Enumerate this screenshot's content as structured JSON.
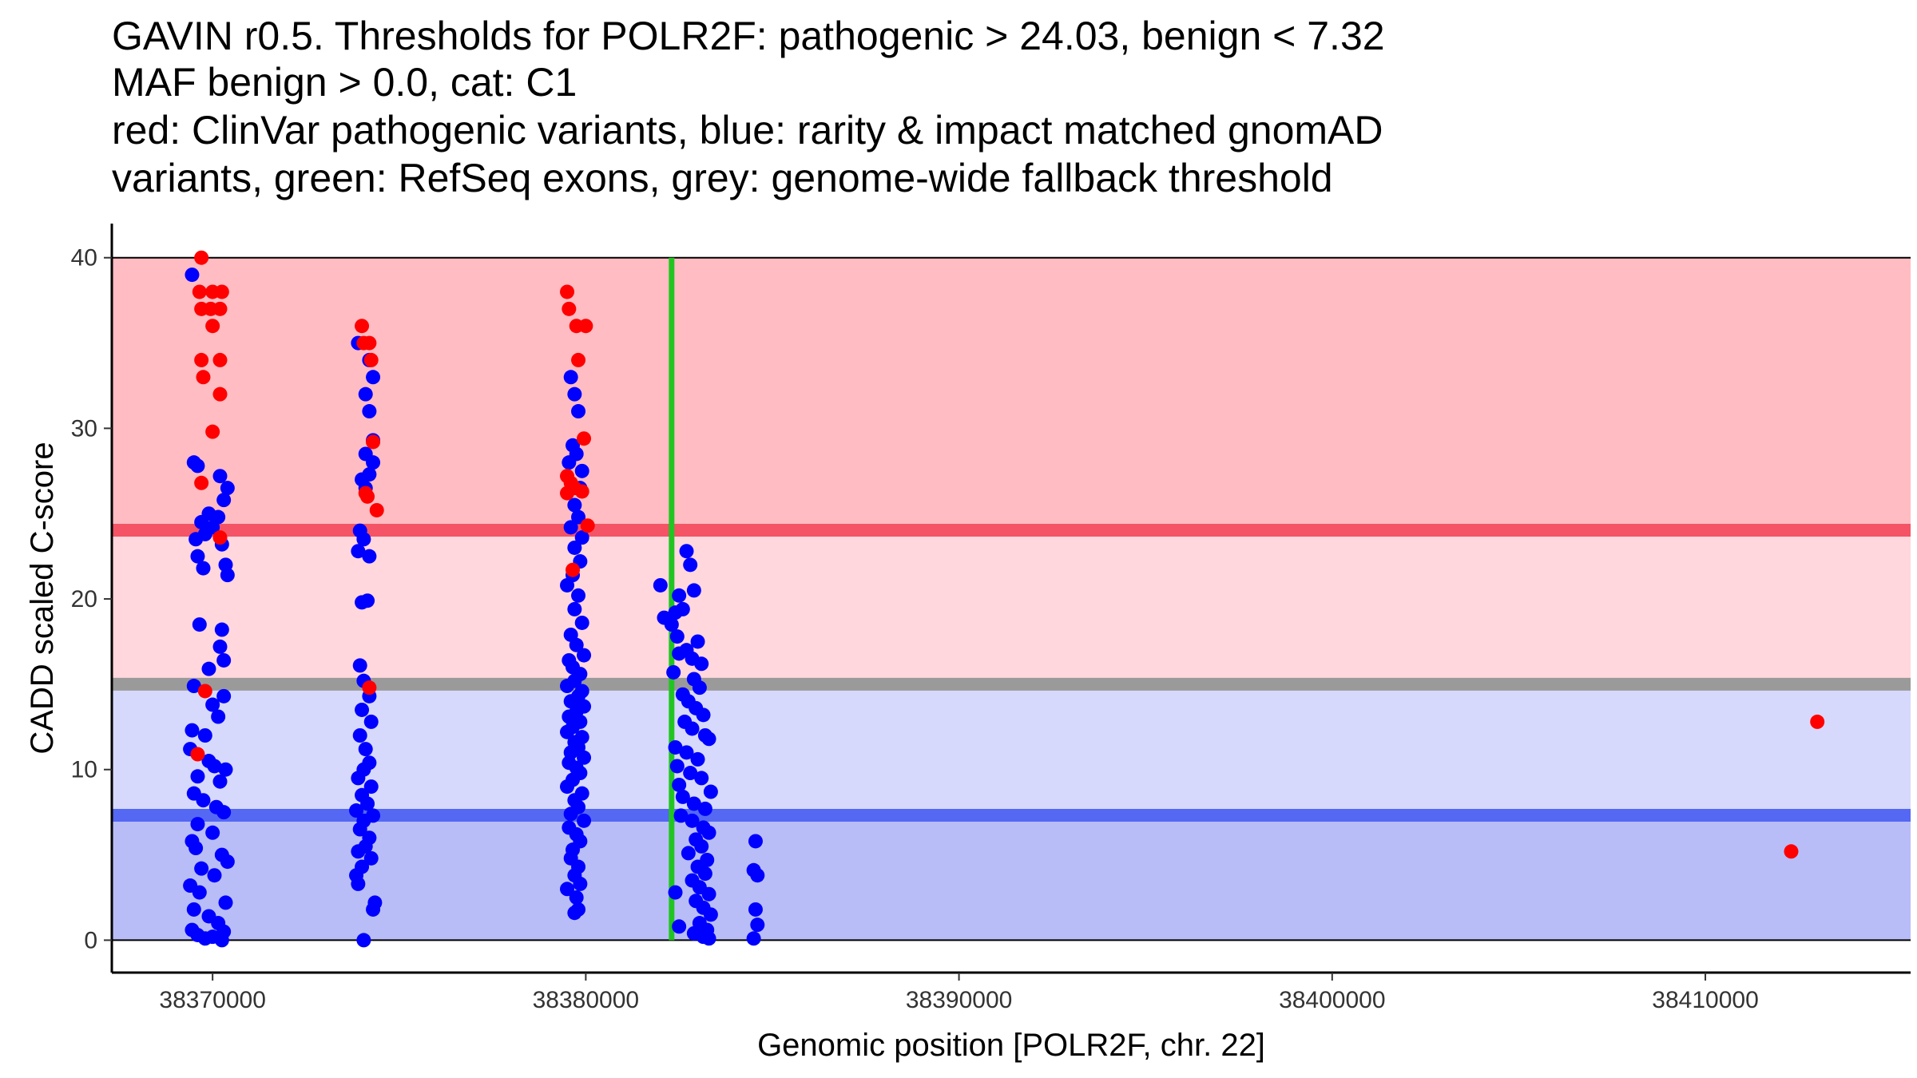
{
  "chart_data": {
    "type": "scatter",
    "title_lines": [
      "GAVIN r0.5. Thresholds for POLR2F: pathogenic > 24.03, benign < 7.32",
      "MAF benign > 0.0, cat: C1",
      "red: ClinVar pathogenic variants, blue: rarity & impact matched gnomAD",
      "variants, green: RefSeq exons, grey: genome-wide fallback threshold"
    ],
    "xlabel": "Genomic position [POLR2F, chr. 22]",
    "ylabel": "CADD scaled C-score",
    "xlim": [
      38367300,
      38415500
    ],
    "ylim": [
      -1.9,
      42
    ],
    "x_ticks": [
      38370000,
      38380000,
      38390000,
      38400000,
      38410000
    ],
    "x_tick_labels": [
      "38370000",
      "38380000",
      "38390000",
      "38400000",
      "38410000"
    ],
    "y_ticks": [
      0,
      10,
      20,
      30,
      40
    ],
    "y_tick_labels": [
      "0",
      "10",
      "20",
      "30",
      "40"
    ],
    "thresholds": {
      "pathogenic": 24.03,
      "benign": 7.32,
      "fallback": 15.0,
      "max": 40
    },
    "colors": {
      "pathogenic_zone": "#ffbcc2",
      "mid_patho_zone": "#ffd7dc",
      "mid_benign_zone": "#d6d9fb",
      "benign_zone": "#b8bdf7",
      "pathogenic_line": "#f45465",
      "benign_line": "#5468f4",
      "fallback_line": "#9a9a9a",
      "exon": "#22c422",
      "clinvar": "#ff0000",
      "gnomad": "#0000ff"
    },
    "exons": [
      38382300
    ],
    "series": [
      {
        "name": "gnomAD",
        "points": [
          [
            38369450,
            39.0
          ],
          [
            38369500,
            28.0
          ],
          [
            38369600,
            27.8
          ],
          [
            38369700,
            24.5
          ],
          [
            38369550,
            23.5
          ],
          [
            38369600,
            22.5
          ],
          [
            38369800,
            23.8
          ],
          [
            38369900,
            25.0
          ],
          [
            38370150,
            24.8
          ],
          [
            38370300,
            25.8
          ],
          [
            38370400,
            26.5
          ],
          [
            38370200,
            27.2
          ],
          [
            38370250,
            23.2
          ],
          [
            38370350,
            22.0
          ],
          [
            38370400,
            21.4
          ],
          [
            38369750,
            21.8
          ],
          [
            38370000,
            24.2
          ],
          [
            38369650,
            18.5
          ],
          [
            38370250,
            18.2
          ],
          [
            38370200,
            17.2
          ],
          [
            38370300,
            16.4
          ],
          [
            38369900,
            15.9
          ],
          [
            38369500,
            14.9
          ],
          [
            38370300,
            14.3
          ],
          [
            38370000,
            13.8
          ],
          [
            38370150,
            13.1
          ],
          [
            38369450,
            12.3
          ],
          [
            38369800,
            12.0
          ],
          [
            38369400,
            11.2
          ],
          [
            38369900,
            10.5
          ],
          [
            38370050,
            10.2
          ],
          [
            38370350,
            10.0
          ],
          [
            38369600,
            9.6
          ],
          [
            38370200,
            9.3
          ],
          [
            38369500,
            8.6
          ],
          [
            38369750,
            8.2
          ],
          [
            38370100,
            7.8
          ],
          [
            38370300,
            7.5
          ],
          [
            38369600,
            6.8
          ],
          [
            38370000,
            6.3
          ],
          [
            38369450,
            5.8
          ],
          [
            38369550,
            5.4
          ],
          [
            38370250,
            5.0
          ],
          [
            38370400,
            4.6
          ],
          [
            38369700,
            4.2
          ],
          [
            38370050,
            3.8
          ],
          [
            38369400,
            3.2
          ],
          [
            38369650,
            2.8
          ],
          [
            38370350,
            2.2
          ],
          [
            38369500,
            1.8
          ],
          [
            38369900,
            1.4
          ],
          [
            38370150,
            1.0
          ],
          [
            38369450,
            0.6
          ],
          [
            38370300,
            0.5
          ],
          [
            38369600,
            0.3
          ],
          [
            38369800,
            0.1
          ],
          [
            38370000,
            0.2
          ],
          [
            38370250,
            0.0
          ],
          [
            38373900,
            35.0
          ],
          [
            38374200,
            34.0
          ],
          [
            38374300,
            33.0
          ],
          [
            38374100,
            32.0
          ],
          [
            38374200,
            31.0
          ],
          [
            38374300,
            29.3
          ],
          [
            38374100,
            28.5
          ],
          [
            38374300,
            28.0
          ],
          [
            38374200,
            27.3
          ],
          [
            38374000,
            27.0
          ],
          [
            38374100,
            26.5
          ],
          [
            38373950,
            24.0
          ],
          [
            38374050,
            23.5
          ],
          [
            38373900,
            22.8
          ],
          [
            38374200,
            22.5
          ],
          [
            38374000,
            19.8
          ],
          [
            38374150,
            19.9
          ],
          [
            38373950,
            16.1
          ],
          [
            38374050,
            15.2
          ],
          [
            38374200,
            14.3
          ],
          [
            38374000,
            13.5
          ],
          [
            38374250,
            12.8
          ],
          [
            38373950,
            12.0
          ],
          [
            38374100,
            11.2
          ],
          [
            38374200,
            10.4
          ],
          [
            38374050,
            10.0
          ],
          [
            38373900,
            9.5
          ],
          [
            38374250,
            9.0
          ],
          [
            38374000,
            8.5
          ],
          [
            38374150,
            8.0
          ],
          [
            38373850,
            7.6
          ],
          [
            38374300,
            7.3
          ],
          [
            38374050,
            7.0
          ],
          [
            38373950,
            6.5
          ],
          [
            38374200,
            6.0
          ],
          [
            38374100,
            5.5
          ],
          [
            38373900,
            5.2
          ],
          [
            38374250,
            4.8
          ],
          [
            38374000,
            4.3
          ],
          [
            38373850,
            3.8
          ],
          [
            38373900,
            3.3
          ],
          [
            38374350,
            2.2
          ],
          [
            38374300,
            1.8
          ],
          [
            38374050,
            0.0
          ],
          [
            38379600,
            33.0
          ],
          [
            38379700,
            32.0
          ],
          [
            38379800,
            31.0
          ],
          [
            38379650,
            29.0
          ],
          [
            38379750,
            28.5
          ],
          [
            38379550,
            28.0
          ],
          [
            38379900,
            27.5
          ],
          [
            38379850,
            26.5
          ],
          [
            38379700,
            25.5
          ],
          [
            38379800,
            24.8
          ],
          [
            38379600,
            24.2
          ],
          [
            38379900,
            23.6
          ],
          [
            38379700,
            23.0
          ],
          [
            38379850,
            22.2
          ],
          [
            38379650,
            21.4
          ],
          [
            38379500,
            20.8
          ],
          [
            38379800,
            20.2
          ],
          [
            38379700,
            19.4
          ],
          [
            38379900,
            18.6
          ],
          [
            38379600,
            17.9
          ],
          [
            38379750,
            17.3
          ],
          [
            38379950,
            16.7
          ],
          [
            38379550,
            16.4
          ],
          [
            38379650,
            16.0
          ],
          [
            38379850,
            15.6
          ],
          [
            38379700,
            15.2
          ],
          [
            38379500,
            14.9
          ],
          [
            38379900,
            14.6
          ],
          [
            38379800,
            14.3
          ],
          [
            38379600,
            14.0
          ],
          [
            38379950,
            13.7
          ],
          [
            38379750,
            13.4
          ],
          [
            38379550,
            13.1
          ],
          [
            38379850,
            12.8
          ],
          [
            38379650,
            12.5
          ],
          [
            38379500,
            12.2
          ],
          [
            38379900,
            11.9
          ],
          [
            38379700,
            11.6
          ],
          [
            38379800,
            11.3
          ],
          [
            38379600,
            11.0
          ],
          [
            38379950,
            10.7
          ],
          [
            38379550,
            10.4
          ],
          [
            38379750,
            10.1
          ],
          [
            38379850,
            9.8
          ],
          [
            38379650,
            9.4
          ],
          [
            38379500,
            9.0
          ],
          [
            38379900,
            8.6
          ],
          [
            38379700,
            8.2
          ],
          [
            38379800,
            7.8
          ],
          [
            38379600,
            7.4
          ],
          [
            38379950,
            7.0
          ],
          [
            38379550,
            6.6
          ],
          [
            38379750,
            6.2
          ],
          [
            38379850,
            5.8
          ],
          [
            38379650,
            5.3
          ],
          [
            38379600,
            4.8
          ],
          [
            38379800,
            4.3
          ],
          [
            38379700,
            3.8
          ],
          [
            38379500,
            3.0
          ],
          [
            38379850,
            3.3
          ],
          [
            38379750,
            2.5
          ],
          [
            38379800,
            1.8
          ],
          [
            38379700,
            1.6
          ],
          [
            38382000,
            20.8
          ],
          [
            38382400,
            19.2
          ],
          [
            38382100,
            18.9
          ],
          [
            38382700,
            22.8
          ],
          [
            38382800,
            22.0
          ],
          [
            38382900,
            20.5
          ],
          [
            38382500,
            20.2
          ],
          [
            38382600,
            19.4
          ],
          [
            38382300,
            18.5
          ],
          [
            38382450,
            17.8
          ],
          [
            38383000,
            17.5
          ],
          [
            38382700,
            17.0
          ],
          [
            38382500,
            16.8
          ],
          [
            38382850,
            16.5
          ],
          [
            38383100,
            16.2
          ],
          [
            38382350,
            15.7
          ],
          [
            38382900,
            15.3
          ],
          [
            38383050,
            14.8
          ],
          [
            38382600,
            14.4
          ],
          [
            38382750,
            14.0
          ],
          [
            38382950,
            13.6
          ],
          [
            38383150,
            13.2
          ],
          [
            38382650,
            12.8
          ],
          [
            38382850,
            12.4
          ],
          [
            38383200,
            12.0
          ],
          [
            38383300,
            11.8
          ],
          [
            38382400,
            11.3
          ],
          [
            38382700,
            11.0
          ],
          [
            38383000,
            10.6
          ],
          [
            38382450,
            10.2
          ],
          [
            38382800,
            9.8
          ],
          [
            38383100,
            9.5
          ],
          [
            38382500,
            9.1
          ],
          [
            38383350,
            8.7
          ],
          [
            38382600,
            8.4
          ],
          [
            38382900,
            8.0
          ],
          [
            38383200,
            7.7
          ],
          [
            38382550,
            7.3
          ],
          [
            38382850,
            7.0
          ],
          [
            38383150,
            6.6
          ],
          [
            38383300,
            6.3
          ],
          [
            38382950,
            5.9
          ],
          [
            38383100,
            5.5
          ],
          [
            38382750,
            5.1
          ],
          [
            38383250,
            4.7
          ],
          [
            38383000,
            4.3
          ],
          [
            38383200,
            3.9
          ],
          [
            38382850,
            3.5
          ],
          [
            38383050,
            3.1
          ],
          [
            38383300,
            2.7
          ],
          [
            38382400,
            2.8
          ],
          [
            38382950,
            2.3
          ],
          [
            38383150,
            1.9
          ],
          [
            38383350,
            1.5
          ],
          [
            38383050,
            1.0
          ],
          [
            38382500,
            0.8
          ],
          [
            38383250,
            0.6
          ],
          [
            38382900,
            0.4
          ],
          [
            38383150,
            0.2
          ],
          [
            38383300,
            0.1
          ],
          [
            38384550,
            5.8
          ],
          [
            38384500,
            4.1
          ],
          [
            38384600,
            3.8
          ],
          [
            38384550,
            1.8
          ],
          [
            38384600,
            0.9
          ],
          [
            38384500,
            0.1
          ]
        ]
      },
      {
        "name": "ClinVar",
        "points": [
          [
            38369700,
            40.0
          ],
          [
            38369650,
            38.0
          ],
          [
            38370000,
            38.0
          ],
          [
            38370250,
            38.0
          ],
          [
            38369700,
            37.0
          ],
          [
            38369950,
            37.0
          ],
          [
            38370200,
            37.0
          ],
          [
            38370000,
            36.0
          ],
          [
            38369700,
            34.0
          ],
          [
            38370200,
            34.0
          ],
          [
            38369750,
            33.0
          ],
          [
            38370200,
            32.0
          ],
          [
            38370000,
            29.8
          ],
          [
            38369700,
            26.8
          ],
          [
            38370200,
            23.6
          ],
          [
            38369600,
            10.9
          ],
          [
            38369800,
            14.6
          ],
          [
            38374000,
            36.0
          ],
          [
            38374050,
            35.0
          ],
          [
            38374200,
            35.0
          ],
          [
            38374250,
            34.0
          ],
          [
            38374300,
            29.2
          ],
          [
            38374100,
            26.2
          ],
          [
            38374150,
            26.0
          ],
          [
            38374400,
            25.2
          ],
          [
            38374200,
            14.8
          ],
          [
            38379500,
            38.0
          ],
          [
            38379550,
            37.0
          ],
          [
            38379750,
            36.0
          ],
          [
            38380000,
            36.0
          ],
          [
            38379800,
            34.0
          ],
          [
            38379950,
            29.4
          ],
          [
            38379500,
            27.2
          ],
          [
            38379600,
            26.8
          ],
          [
            38379700,
            26.5
          ],
          [
            38379500,
            26.2
          ],
          [
            38379900,
            26.3
          ],
          [
            38380050,
            24.3
          ],
          [
            38379650,
            21.7
          ],
          [
            38412300,
            5.2
          ],
          [
            38413000,
            12.8
          ]
        ]
      }
    ]
  }
}
